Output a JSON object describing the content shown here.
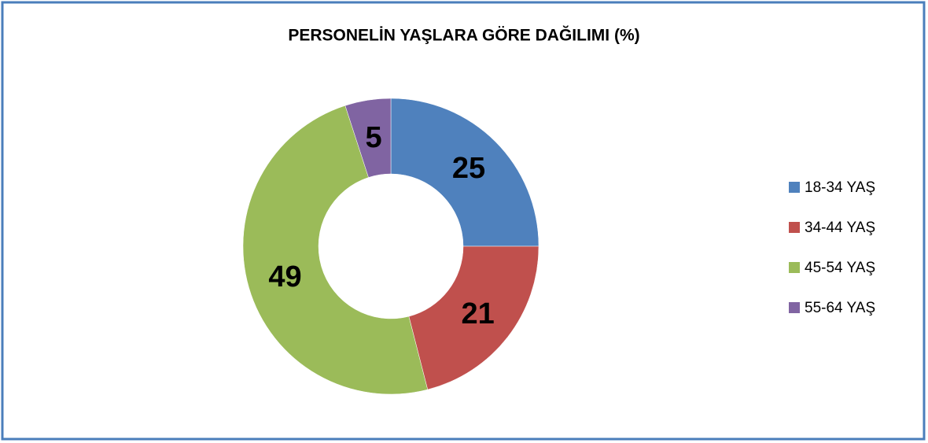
{
  "chart_data": {
    "type": "donut",
    "title": "PERSONELİN YAŞLARA GÖRE DAĞILIMI (%)",
    "categories": [
      "18-34 YAŞ",
      "34-44 YAŞ",
      "45-54 YAŞ",
      "55-64 YAŞ"
    ],
    "values": [
      25,
      21,
      49,
      5
    ],
    "colors": [
      "#4f81bd",
      "#c0504d",
      "#9bbb59",
      "#8064a2"
    ],
    "legend": "right"
  }
}
